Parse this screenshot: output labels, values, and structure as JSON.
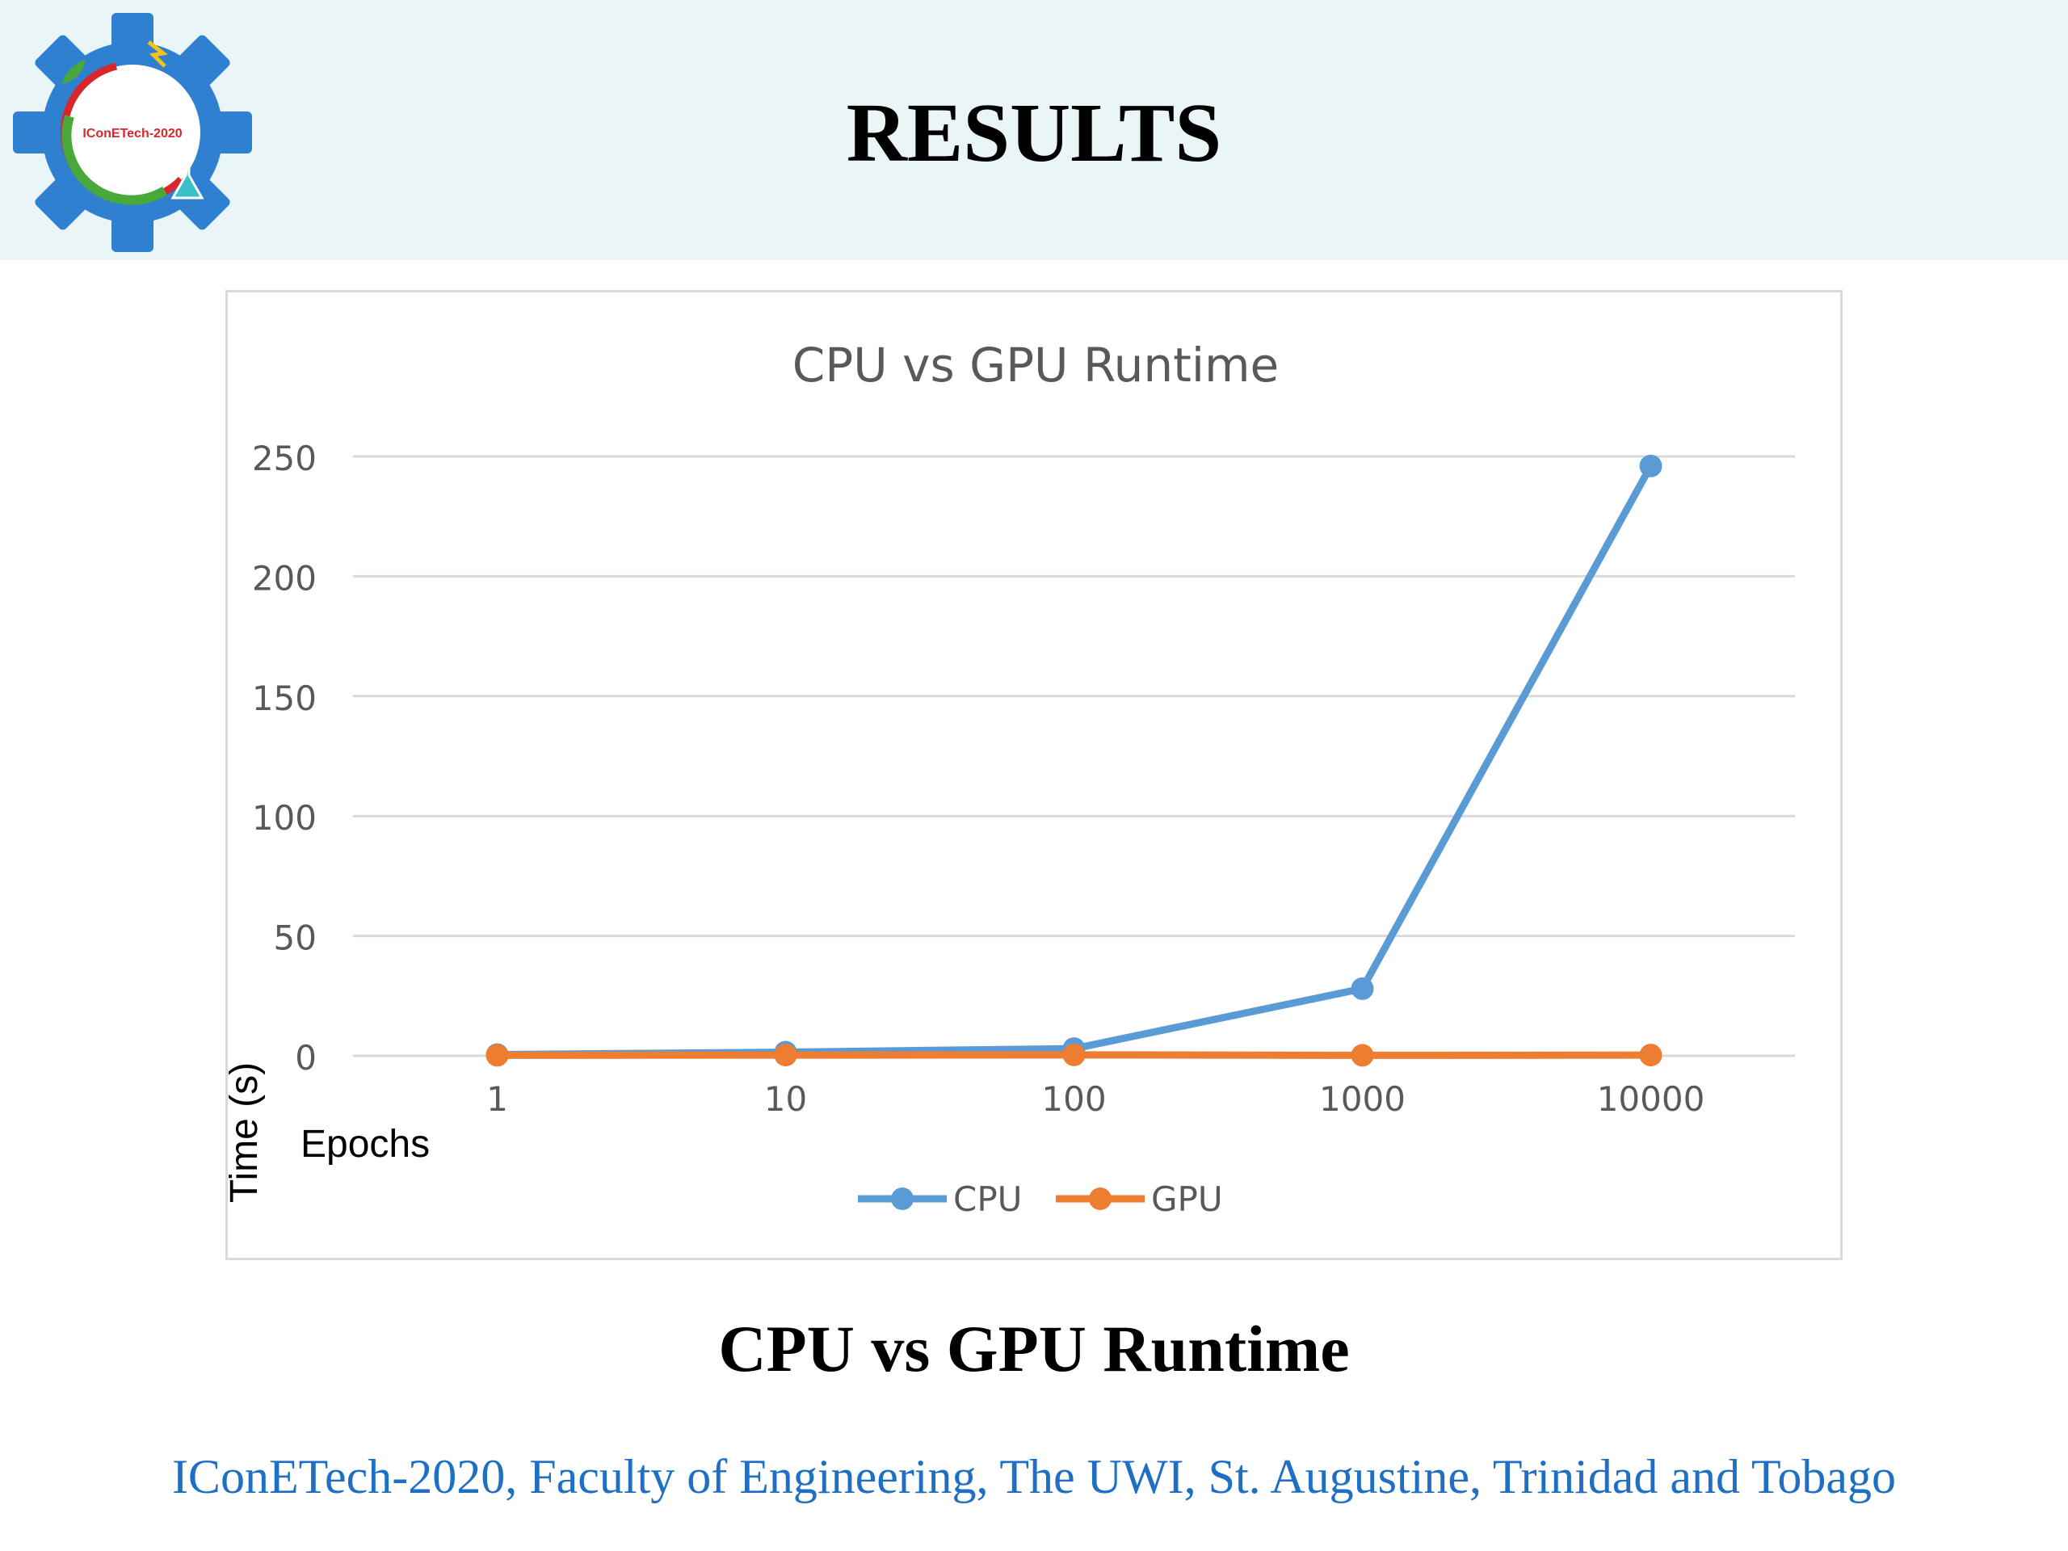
{
  "slide": {
    "title": "RESULTS",
    "caption": "CPU vs GPU Runtime",
    "footer": "IConETech-2020, Faculty of Engineering, The UWI, St. Augustine, Trinidad and Tobago",
    "logo_text": "IConETech-2020"
  },
  "colors": {
    "header_band": "#e9f5f7",
    "cpu": "#5b9bd5",
    "gpu": "#ed7d31",
    "footer_text": "#1f6fc4",
    "logo_gear": "#2f80d0"
  },
  "chart_data": {
    "type": "line",
    "title": "CPU vs GPU Runtime",
    "xlabel": "Epochs",
    "ylabel": "Time (s)",
    "categories": [
      "1",
      "10",
      "100",
      "1000",
      "10000"
    ],
    "series": [
      {
        "name": "CPU",
        "values": [
          0.5,
          1.5,
          3,
          28,
          246
        ]
      },
      {
        "name": "GPU",
        "values": [
          0.2,
          0.3,
          0.4,
          0.2,
          0.3
        ]
      }
    ],
    "yticks": [
      0,
      50,
      100,
      150,
      200,
      250
    ],
    "ylim": [
      0,
      250
    ],
    "grid": true,
    "legend": "bottom"
  }
}
